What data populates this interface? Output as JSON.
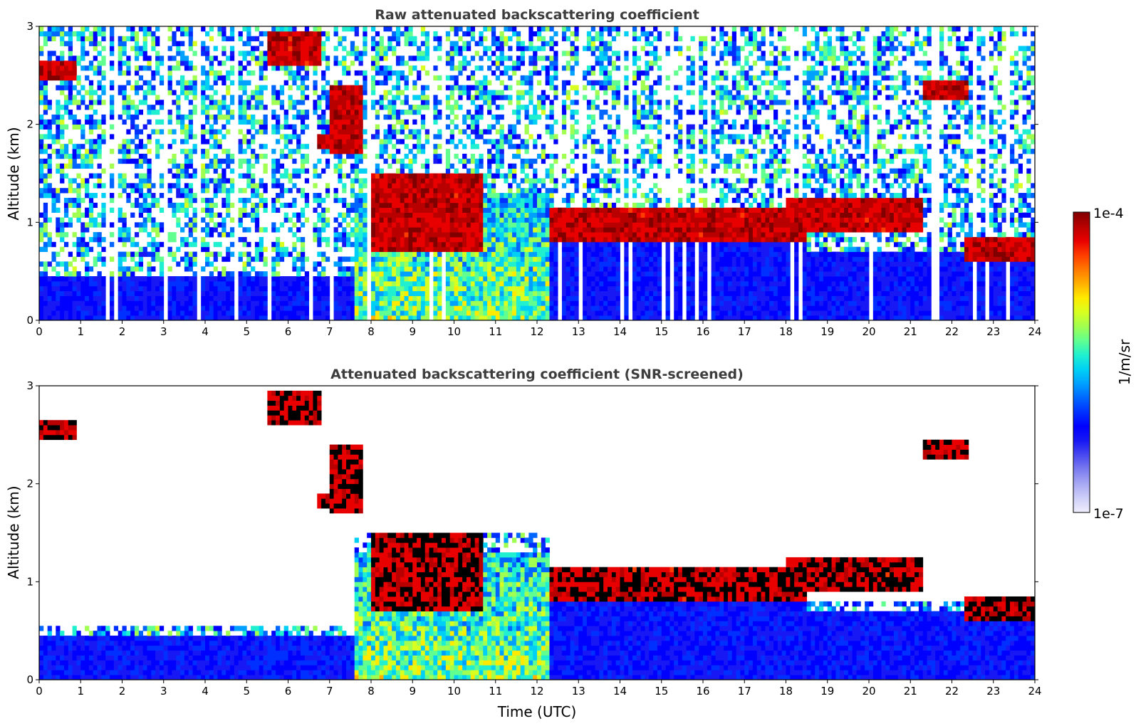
{
  "chart_data": [
    {
      "type": "heatmap",
      "title": "Raw attenuated backscattering coefficient",
      "xlabel": "",
      "ylabel": "Altitude (km)",
      "xlim": [
        0,
        24
      ],
      "ylim": [
        0,
        3
      ],
      "xticks": [
        "0",
        "1",
        "2",
        "3",
        "4",
        "5",
        "6",
        "7",
        "8",
        "9",
        "10",
        "11",
        "12",
        "13",
        "14",
        "15",
        "16",
        "17",
        "18",
        "19",
        "20",
        "21",
        "22",
        "23",
        "24"
      ],
      "yticks": [
        "0",
        "1",
        "2",
        "3"
      ],
      "colormap": "jet",
      "screened": false,
      "cloud_layers": [
        {
          "t": [
            0.0,
            0.85
          ],
          "alt": [
            2.45,
            2.65
          ]
        },
        {
          "t": [
            5.5,
            6.8
          ],
          "alt": [
            2.6,
            2.95
          ]
        },
        {
          "t": [
            6.7,
            7.3
          ],
          "alt": [
            1.75,
            1.9
          ]
        },
        {
          "t": [
            7.0,
            7.8
          ],
          "alt": [
            1.7,
            2.4
          ]
        },
        {
          "t": [
            8.0,
            10.7
          ],
          "alt": [
            0.7,
            1.5
          ]
        },
        {
          "t": [
            12.3,
            18.5
          ],
          "alt": [
            0.8,
            1.15
          ]
        },
        {
          "t": [
            18.0,
            21.3
          ],
          "alt": [
            0.9,
            1.25
          ]
        },
        {
          "t": [
            21.3,
            22.4
          ],
          "alt": [
            2.25,
            2.45
          ]
        },
        {
          "t": [
            22.3,
            24.0
          ],
          "alt": [
            0.6,
            0.85
          ]
        }
      ]
    },
    {
      "type": "heatmap",
      "title": "Attenuated backscattering coefficient (SNR-screened)",
      "xlabel": "Time (UTC)",
      "ylabel": "Altitude (km)",
      "xlim": [
        0,
        24
      ],
      "ylim": [
        0,
        3
      ],
      "xticks": [
        "0",
        "1",
        "2",
        "3",
        "4",
        "5",
        "6",
        "7",
        "8",
        "9",
        "10",
        "11",
        "12",
        "13",
        "14",
        "15",
        "16",
        "17",
        "18",
        "19",
        "20",
        "21",
        "22",
        "23",
        "24"
      ],
      "yticks": [
        "0",
        "1",
        "2",
        "3"
      ],
      "colormap": "jet",
      "screened": true,
      "saturated_color": "#000000"
    }
  ],
  "colorbar": {
    "label": "1/m/sr",
    "min_label": "1e-7",
    "max_label": "1e-4",
    "colors": [
      "#eeeefe",
      "#cfcff8",
      "#a8a8f4",
      "#7c7cf0",
      "#4a4af0",
      "#1818f4",
      "#0000ff",
      "#0030ff",
      "#0066ff",
      "#00a0ff",
      "#00d0f4",
      "#20f0d0",
      "#60ff90",
      "#a0ff50",
      "#d8ff20",
      "#ffea00",
      "#ffb000",
      "#ff7800",
      "#ff3c00",
      "#e80000",
      "#b80000",
      "#800000"
    ]
  }
}
